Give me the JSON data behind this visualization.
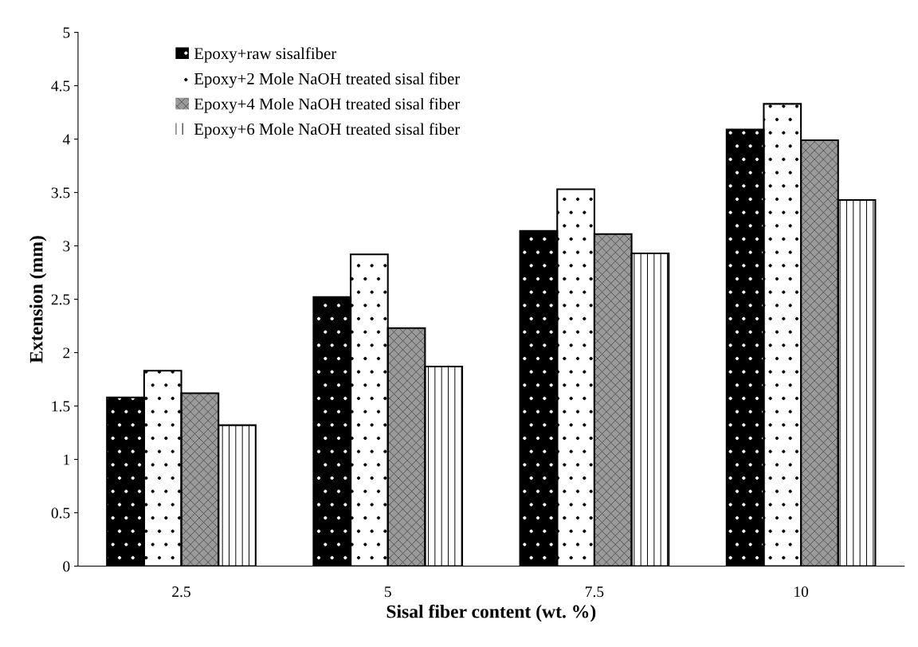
{
  "chart_data": {
    "type": "bar",
    "xlabel": "Sisal fiber content (wt. %)",
    "ylabel": "Extension (mm)",
    "categories": [
      "2.5",
      "5",
      "7.5",
      "10"
    ],
    "series": [
      {
        "name": "Epoxy+raw sisalfiber",
        "color": "#000000",
        "values": [
          1.58,
          2.52,
          3.14,
          4.09
        ]
      },
      {
        "name": "Epoxy+2 Mole NaOH treated sisal fiber",
        "color": "#ffffff",
        "values": [
          1.83,
          2.92,
          3.53,
          4.33
        ]
      },
      {
        "name": "Epoxy+4 Mole NaOH treated sisal fiber",
        "color": "#9a9a9a",
        "values": [
          1.62,
          2.23,
          3.11,
          3.99
        ]
      },
      {
        "name": "Epoxy+6 Mole NaOH treated sisal fiber",
        "color": "#ffffff",
        "values": [
          1.32,
          1.87,
          2.93,
          3.43
        ]
      }
    ],
    "ylim": [
      0,
      5
    ],
    "yticks": [
      0,
      0.5,
      1,
      1.5,
      2,
      2.5,
      3,
      3.5,
      4,
      4.5,
      5
    ],
    "grid": false,
    "legend": "top left"
  }
}
